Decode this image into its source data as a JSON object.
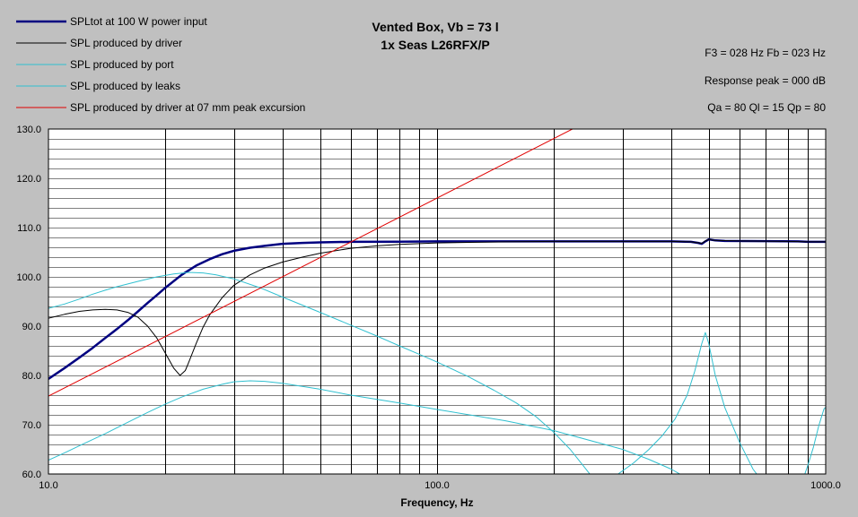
{
  "chart_data": {
    "type": "line",
    "title_lines": [
      "Vented Box, Vb = 73 l",
      "1x Seas L26RFX/P"
    ],
    "info_lines": [
      "F3 = 028 Hz  Fb = 023 Hz",
      "Response peak = 000 dB",
      "Qa = 80  Ql = 15  Qp = 80"
    ],
    "xlabel": "Frequency, Hz",
    "ylabel": "",
    "x_scale": "log",
    "xlim": [
      10,
      1000
    ],
    "ylim": [
      60,
      130
    ],
    "x_tick_labels": [
      {
        "value": 10,
        "label": "10.0"
      },
      {
        "value": 100,
        "label": "100.0"
      },
      {
        "value": 1000,
        "label": "1000.0"
      }
    ],
    "y_tick_labels": [
      {
        "value": 60,
        "label": "60.0"
      },
      {
        "value": 70,
        "label": "70.0"
      },
      {
        "value": 80,
        "label": "80.0"
      },
      {
        "value": 90,
        "label": "90.0"
      },
      {
        "value": 100,
        "label": "100.0"
      },
      {
        "value": 110,
        "label": "110.0"
      },
      {
        "value": 120,
        "label": "120.0"
      },
      {
        "value": 130,
        "label": "130.0"
      }
    ],
    "grid": true,
    "legend_position": "top-left",
    "series": [
      {
        "name": "SPLtot at 100 W power input",
        "color": "#000080",
        "width": 2.5,
        "points": [
          [
            10,
            79.3
          ],
          [
            11,
            81.5
          ],
          [
            12,
            83.6
          ],
          [
            13,
            85.6
          ],
          [
            14,
            87.6
          ],
          [
            15,
            89.4
          ],
          [
            16,
            91.2
          ],
          [
            17,
            93.0
          ],
          [
            18,
            94.7
          ],
          [
            19,
            96.3
          ],
          [
            20,
            97.8
          ],
          [
            22,
            100.4
          ],
          [
            24,
            102.3
          ],
          [
            26,
            103.6
          ],
          [
            28,
            104.6
          ],
          [
            30,
            105.3
          ],
          [
            33,
            105.9
          ],
          [
            36,
            106.3
          ],
          [
            40,
            106.7
          ],
          [
            45,
            106.9
          ],
          [
            50,
            107.0
          ],
          [
            60,
            107.1
          ],
          [
            80,
            107.15
          ],
          [
            100,
            107.2
          ],
          [
            150,
            107.2
          ],
          [
            200,
            107.2
          ],
          [
            300,
            107.2
          ],
          [
            400,
            107.2
          ],
          [
            450,
            107.1
          ],
          [
            470,
            106.9
          ],
          [
            480,
            106.7
          ],
          [
            490,
            107.2
          ],
          [
            500,
            107.6
          ],
          [
            520,
            107.4
          ],
          [
            550,
            107.3
          ],
          [
            700,
            107.25
          ],
          [
            850,
            107.2
          ],
          [
            900,
            107.1
          ],
          [
            1000,
            107.1
          ]
        ]
      },
      {
        "name": "SPL produced by driver",
        "color": "#000000",
        "width": 1,
        "points": [
          [
            10,
            91.6
          ],
          [
            11,
            92.4
          ],
          [
            12,
            93.0
          ],
          [
            13,
            93.3
          ],
          [
            14,
            93.4
          ],
          [
            15,
            93.3
          ],
          [
            16,
            92.8
          ],
          [
            17,
            91.8
          ],
          [
            18,
            90.0
          ],
          [
            19,
            87.6
          ],
          [
            20,
            84.5
          ],
          [
            21,
            81.5
          ],
          [
            21.8,
            80.0
          ],
          [
            22.5,
            81.0
          ],
          [
            23,
            82.8
          ],
          [
            24,
            86.5
          ],
          [
            25,
            89.8
          ],
          [
            26,
            92.3
          ],
          [
            28,
            95.8
          ],
          [
            30,
            98.3
          ],
          [
            33,
            100.4
          ],
          [
            36,
            101.8
          ],
          [
            40,
            103.0
          ],
          [
            45,
            104.0
          ],
          [
            50,
            104.8
          ],
          [
            60,
            105.8
          ],
          [
            70,
            106.3
          ],
          [
            80,
            106.6
          ],
          [
            100,
            106.9
          ],
          [
            150,
            107.1
          ],
          [
            200,
            107.2
          ],
          [
            300,
            107.2
          ],
          [
            400,
            107.2
          ],
          [
            450,
            107.1
          ],
          [
            480,
            106.8
          ],
          [
            490,
            107.3
          ],
          [
            500,
            107.6
          ],
          [
            520,
            107.4
          ],
          [
            600,
            107.3
          ],
          [
            800,
            107.2
          ],
          [
            900,
            107.1
          ],
          [
            1000,
            107.1
          ]
        ]
      },
      {
        "name": "SPL produced by port",
        "color": "#30c0d0",
        "width": 1,
        "points": [
          [
            10,
            93.6
          ],
          [
            11,
            94.5
          ],
          [
            12,
            95.5
          ],
          [
            13,
            96.5
          ],
          [
            14,
            97.3
          ],
          [
            15,
            98.0
          ],
          [
            17,
            99.1
          ],
          [
            19,
            100.0
          ],
          [
            21,
            100.6
          ],
          [
            23,
            100.9
          ],
          [
            25,
            100.8
          ],
          [
            27,
            100.4
          ],
          [
            30,
            99.6
          ],
          [
            35,
            97.8
          ],
          [
            40,
            95.9
          ],
          [
            50,
            92.8
          ],
          [
            60,
            90.2
          ],
          [
            70,
            88.0
          ],
          [
            80,
            86.0
          ],
          [
            90,
            84.3
          ],
          [
            100,
            82.7
          ],
          [
            120,
            79.8
          ],
          [
            140,
            77.0
          ],
          [
            160,
            74.4
          ],
          [
            180,
            71.6
          ],
          [
            200,
            68.4
          ],
          [
            220,
            65.0
          ],
          [
            240,
            61.3
          ],
          [
            250,
            59.5
          ]
        ]
      },
      {
        "name": "SPL produced by leaks",
        "color": "#30c0d0",
        "width": 1,
        "points": [
          [
            10,
            62.8
          ],
          [
            11,
            64.3
          ],
          [
            12,
            65.7
          ],
          [
            14,
            68.2
          ],
          [
            16,
            70.5
          ],
          [
            18,
            72.5
          ],
          [
            20,
            74.2
          ],
          [
            22,
            75.6
          ],
          [
            25,
            77.2
          ],
          [
            28,
            78.2
          ],
          [
            30,
            78.7
          ],
          [
            33,
            78.9
          ],
          [
            36,
            78.8
          ],
          [
            40,
            78.4
          ],
          [
            50,
            77.2
          ],
          [
            60,
            76.0
          ],
          [
            80,
            74.4
          ],
          [
            100,
            73.1
          ],
          [
            150,
            70.8
          ],
          [
            200,
            68.8
          ],
          [
            300,
            65.0
          ],
          [
            350,
            63.0
          ],
          [
            400,
            61.0
          ],
          [
            430,
            59.6
          ]
        ]
      },
      {
        "name": "SPL produced by leaks (upper)",
        "color": "#30c0d0",
        "width": 1,
        "legend": false,
        "points": [
          [
            290,
            59.8
          ],
          [
            320,
            62.2
          ],
          [
            350,
            64.9
          ],
          [
            380,
            67.8
          ],
          [
            410,
            71.2
          ],
          [
            440,
            76.0
          ],
          [
            460,
            80.8
          ],
          [
            480,
            86.5
          ],
          [
            490,
            88.7
          ],
          [
            500,
            86.5
          ],
          [
            520,
            80.0
          ],
          [
            550,
            73.5
          ],
          [
            600,
            66.5
          ],
          [
            650,
            61.0
          ],
          [
            670,
            59.6
          ]
        ]
      },
      {
        "name": "SPL produced by leaks (edge)",
        "color": "#30c0d0",
        "width": 1,
        "legend": false,
        "points": [
          [
            880,
            59.6
          ],
          [
            900,
            61.8
          ],
          [
            930,
            65.5
          ],
          [
            960,
            69.8
          ],
          [
            990,
            73.2
          ],
          [
            1000,
            73.5
          ]
        ]
      },
      {
        "name": "SPL produced by driver at 07 mm peak excursion",
        "color": "#e00000",
        "width": 1,
        "points": [
          [
            10,
            75.8
          ],
          [
            223,
            130.0
          ]
        ]
      }
    ]
  }
}
